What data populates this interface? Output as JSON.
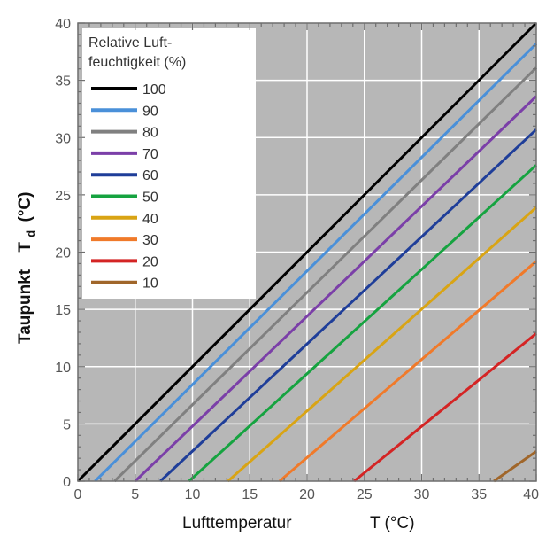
{
  "chart_data": {
    "type": "line",
    "xlim": [
      0,
      40
    ],
    "ylim": [
      0,
      40
    ],
    "xticks": [
      "0",
      "5",
      "10",
      "15",
      "20",
      "25",
      "30",
      "35",
      "40"
    ],
    "yticks": [
      "0",
      "5",
      "10",
      "15",
      "20",
      "25",
      "30",
      "35",
      "40"
    ],
    "xlabel": "Lufttemperatur",
    "xlabel_symbol": "T (°C)",
    "ylabel": "Taupunkt",
    "ylabel_symbol": "T",
    "ylabel_subscript": "d",
    "ylabel_unit": "(°C)",
    "grid": true,
    "background": "#b7b7b7",
    "legend_position": "top-left",
    "legend_title_line1": "Relative Luft-",
    "legend_title_line2": "feuchtigkeit (%)",
    "series": [
      {
        "name": "100",
        "color": "#000000",
        "points": [
          [
            0,
            0
          ],
          [
            40,
            40
          ]
        ]
      },
      {
        "name": "90",
        "color": "#4a90d9",
        "points": [
          [
            1.5,
            0
          ],
          [
            40,
            38.2
          ]
        ]
      },
      {
        "name": "80",
        "color": "#808080",
        "points": [
          [
            3.2,
            0
          ],
          [
            40,
            36.1
          ]
        ]
      },
      {
        "name": "70",
        "color": "#7b3fa8",
        "points": [
          [
            5.0,
            0
          ],
          [
            40,
            33.6
          ]
        ]
      },
      {
        "name": "60",
        "color": "#1f3e99",
        "points": [
          [
            7.2,
            0
          ],
          [
            40,
            30.7
          ]
        ]
      },
      {
        "name": "50",
        "color": "#16a340",
        "points": [
          [
            9.7,
            0
          ],
          [
            40,
            27.6
          ]
        ]
      },
      {
        "name": "40",
        "color": "#d9a414",
        "points": [
          [
            13.1,
            0
          ],
          [
            40,
            23.9
          ]
        ]
      },
      {
        "name": "30",
        "color": "#f07a2a",
        "points": [
          [
            17.6,
            0
          ],
          [
            40,
            19.2
          ]
        ]
      },
      {
        "name": "20",
        "color": "#d42424",
        "points": [
          [
            24.1,
            0
          ],
          [
            40,
            12.9
          ]
        ]
      },
      {
        "name": "10",
        "color": "#a0662a",
        "points": [
          [
            36.3,
            0
          ],
          [
            40,
            2.6
          ]
        ]
      }
    ]
  }
}
